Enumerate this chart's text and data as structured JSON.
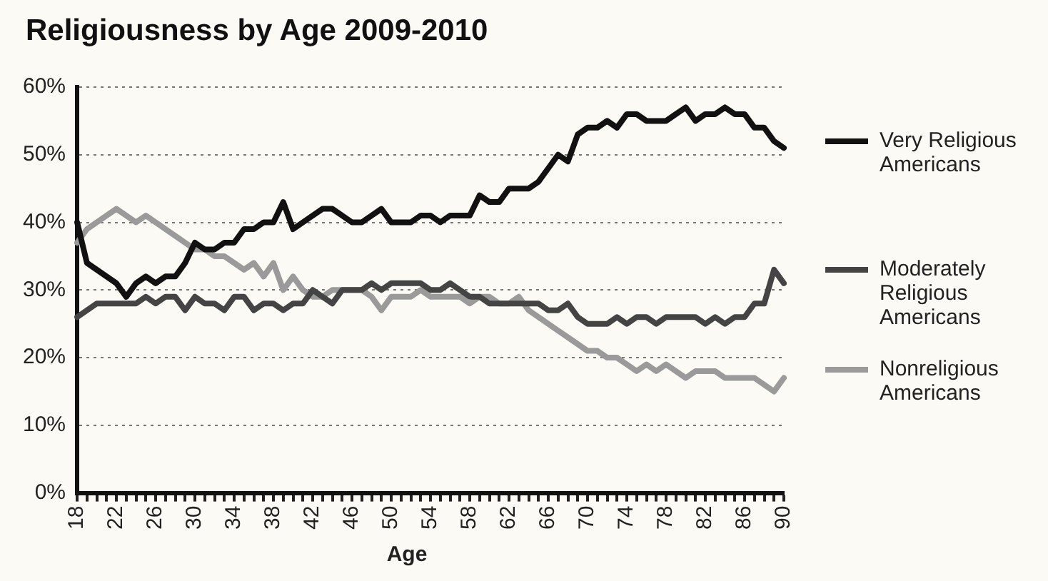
{
  "chart_data": {
    "type": "line",
    "title": "Religiousness by Age 2009-2010",
    "xlabel": "Age",
    "categories": [
      "18",
      null,
      null,
      null,
      "22",
      null,
      null,
      null,
      "26",
      null,
      null,
      null,
      "30",
      null,
      null,
      null,
      "34",
      null,
      null,
      null,
      "38",
      null,
      null,
      null,
      "42",
      null,
      null,
      null,
      "46",
      null,
      null,
      null,
      "50",
      null,
      null,
      null,
      "54",
      null,
      null,
      null,
      "58",
      null,
      null,
      null,
      "62",
      null,
      null,
      null,
      "66",
      null,
      null,
      null,
      "70",
      null,
      null,
      null,
      "74",
      null,
      null,
      null,
      "78",
      null,
      null,
      null,
      "82",
      null,
      null,
      null,
      "86",
      null,
      null,
      null,
      "90"
    ],
    "series": [
      {
        "name": "Very Religious Americans",
        "color": "#111111",
        "values": [
          40,
          34,
          33,
          32,
          31,
          29,
          31,
          32,
          31,
          32,
          32,
          34,
          37,
          36,
          36,
          37,
          37,
          39,
          39,
          40,
          40,
          43,
          39,
          40,
          41,
          42,
          42,
          41,
          40,
          40,
          41,
          42,
          40,
          40,
          40,
          41,
          41,
          40,
          41,
          41,
          41,
          44,
          43,
          43,
          45,
          45,
          45,
          46,
          48,
          50,
          49,
          53,
          54,
          54,
          55,
          54,
          56,
          56,
          55,
          55,
          55,
          56,
          57,
          55,
          56,
          56,
          57,
          56,
          56,
          54,
          54,
          52,
          51
        ]
      },
      {
        "name": "Moderately Religious Americans",
        "color": "#444444",
        "values": [
          26,
          27,
          28,
          28,
          28,
          28,
          28,
          29,
          28,
          29,
          29,
          27,
          29,
          28,
          28,
          27,
          29,
          29,
          27,
          28,
          28,
          27,
          28,
          28,
          30,
          29,
          28,
          30,
          30,
          30,
          31,
          30,
          31,
          31,
          31,
          31,
          30,
          30,
          31,
          30,
          29,
          29,
          28,
          28,
          28,
          28,
          28,
          28,
          27,
          27,
          28,
          26,
          25,
          25,
          25,
          26,
          25,
          26,
          26,
          25,
          26,
          26,
          26,
          26,
          25,
          26,
          25,
          26,
          26,
          28,
          28,
          33,
          31
        ]
      },
      {
        "name": "Nonreligious Americans",
        "color": "#9a9a9a",
        "values": [
          37,
          39,
          40,
          41,
          42,
          41,
          40,
          41,
          40,
          39,
          38,
          37,
          36,
          36,
          35,
          35,
          34,
          33,
          34,
          32,
          34,
          30,
          32,
          30,
          29,
          29,
          30,
          30,
          30,
          30,
          29,
          27,
          29,
          29,
          29,
          30,
          29,
          29,
          29,
          29,
          28,
          29,
          29,
          28,
          28,
          29,
          27,
          26,
          25,
          24,
          23,
          22,
          21,
          21,
          20,
          20,
          19,
          18,
          19,
          18,
          19,
          18,
          17,
          18,
          18,
          18,
          17,
          17,
          17,
          17,
          16,
          15,
          17
        ]
      }
    ],
    "ylim": [
      0,
      60
    ],
    "yticks": [
      {
        "value": 0,
        "label": "0%"
      },
      {
        "value": 10,
        "label": "10%"
      },
      {
        "value": 20,
        "label": "20%"
      },
      {
        "value": 30,
        "label": "30%"
      },
      {
        "value": 40,
        "label": "40%"
      },
      {
        "value": 50,
        "label": "50%"
      },
      {
        "value": 60,
        "label": "60%"
      }
    ],
    "grid": "y",
    "legend": "right",
    "marker": "none",
    "line_style": "solid"
  }
}
